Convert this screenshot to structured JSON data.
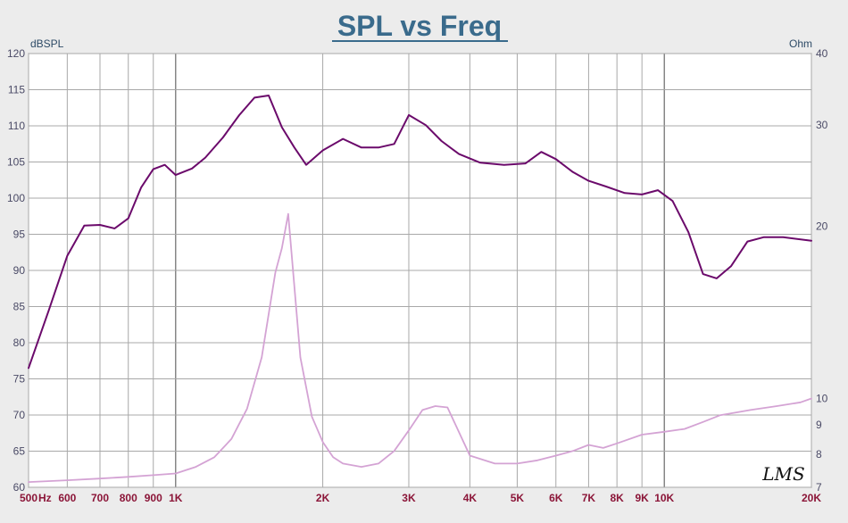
{
  "chart_data": {
    "type": "line",
    "title": "SPL vs Freq",
    "y_left_unit": "dBSPL",
    "y_right_unit": "Ohm",
    "x_scale": "log",
    "xlim": [
      500,
      20000
    ],
    "ylim": [
      60,
      120
    ],
    "y2lim": [
      7,
      40
    ],
    "y2_scale": "log",
    "grid": true,
    "x_ticks": [
      {
        "value": 500,
        "label": "500"
      },
      {
        "value": 540,
        "label": "Hz"
      },
      {
        "value": 600,
        "label": "600"
      },
      {
        "value": 700,
        "label": "700"
      },
      {
        "value": 800,
        "label": "800"
      },
      {
        "value": 900,
        "label": "900"
      },
      {
        "value": 1000,
        "label": "1K"
      },
      {
        "value": 2000,
        "label": "2K"
      },
      {
        "value": 3000,
        "label": "3K"
      },
      {
        "value": 4000,
        "label": "4K"
      },
      {
        "value": 5000,
        "label": "5K"
      },
      {
        "value": 6000,
        "label": "6K"
      },
      {
        "value": 7000,
        "label": "7K"
      },
      {
        "value": 8000,
        "label": "8K"
      },
      {
        "value": 9000,
        "label": "9K"
      },
      {
        "value": 10000,
        "label": "10K"
      },
      {
        "value": 20000,
        "label": "20K"
      }
    ],
    "y_ticks": [
      60,
      65,
      70,
      75,
      80,
      85,
      90,
      95,
      100,
      105,
      110,
      115,
      120
    ],
    "y2_ticks": [
      7,
      8,
      9,
      10,
      20,
      30,
      40
    ],
    "series": [
      {
        "axis": "left",
        "color": "#6b0a6b",
        "x": [
          500,
          550,
          600,
          650,
          700,
          750,
          800,
          850,
          900,
          950,
          1000,
          1080,
          1150,
          1250,
          1350,
          1450,
          1550,
          1650,
          1750,
          1850,
          2000,
          2200,
          2400,
          2600,
          2800,
          3000,
          3250,
          3500,
          3800,
          4200,
          4700,
          5200,
          5600,
          6000,
          6500,
          7000,
          7600,
          8300,
          9000,
          9700,
          10400,
          11200,
          12000,
          12800,
          13700,
          14800,
          16000,
          17500,
          20000
        ],
        "y": [
          76.5,
          84.5,
          92,
          96.2,
          96.3,
          95.8,
          97.2,
          101.5,
          104,
          104.6,
          103.2,
          104.1,
          105.6,
          108.4,
          111.5,
          113.9,
          114.2,
          109.8,
          107,
          104.6,
          106.6,
          108.2,
          107,
          107,
          107.5,
          111.5,
          110.1,
          107.9,
          106.1,
          104.9,
          104.6,
          104.8,
          106.4,
          105.4,
          103.6,
          102.4,
          101.6,
          100.7,
          100.5,
          101.1,
          99.6,
          95.3,
          89.5,
          88.9,
          90.6,
          94,
          94.6,
          94.6,
          94.1
        ]
      },
      {
        "axis": "right",
        "color": "#d4a3d4",
        "x": [
          500,
          600,
          700,
          800,
          900,
          1000,
          1100,
          1200,
          1300,
          1400,
          1500,
          1600,
          1650,
          1700,
          1800,
          1900,
          2000,
          2100,
          2200,
          2400,
          2600,
          2800,
          3000,
          3200,
          3400,
          3600,
          4000,
          4500,
          5000,
          5500,
          6000,
          6500,
          7000,
          7500,
          8000,
          9000,
          10000,
          11000,
          12000,
          13000,
          14000,
          15000,
          17000,
          19000,
          20000
        ],
        "y": [
          7.15,
          7.2,
          7.25,
          7.3,
          7.35,
          7.4,
          7.6,
          7.9,
          8.5,
          9.6,
          11.8,
          16.6,
          18.3,
          21,
          11.8,
          9.3,
          8.4,
          7.9,
          7.7,
          7.6,
          7.7,
          8.1,
          8.8,
          9.55,
          9.7,
          9.65,
          7.95,
          7.7,
          7.7,
          7.8,
          7.95,
          8.1,
          8.3,
          8.2,
          8.35,
          8.65,
          8.75,
          8.85,
          9.1,
          9.35,
          9.45,
          9.55,
          9.7,
          9.85,
          10.0
        ]
      }
    ],
    "logo": "LMS"
  }
}
